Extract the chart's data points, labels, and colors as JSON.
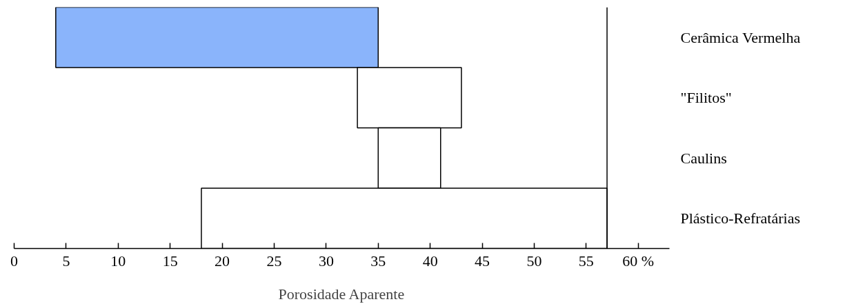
{
  "chart_data": {
    "type": "bar",
    "orientation": "horizontal",
    "xlabel": "Porosidade Aparente",
    "categories": [
      "Cerâmica Vermelha",
      "\"Filitos\"",
      "Caulins",
      "Plástico-Refratárias"
    ],
    "base": [
      4,
      33,
      35,
      18
    ],
    "values": [
      31,
      10,
      6,
      39
    ],
    "colors": [
      "#8ab4fb",
      "#ffffff",
      "#ffffff",
      "#ffffff"
    ],
    "xlim": [
      0,
      63
    ],
    "xticks": [
      0,
      5,
      10,
      15,
      20,
      25,
      30,
      35,
      40,
      45,
      50,
      55,
      {
        "value": 60,
        "label": "60 %"
      }
    ],
    "ref_lines": [
      {
        "axis": "x",
        "value": 57,
        "label": null
      }
    ],
    "grid": false
  }
}
